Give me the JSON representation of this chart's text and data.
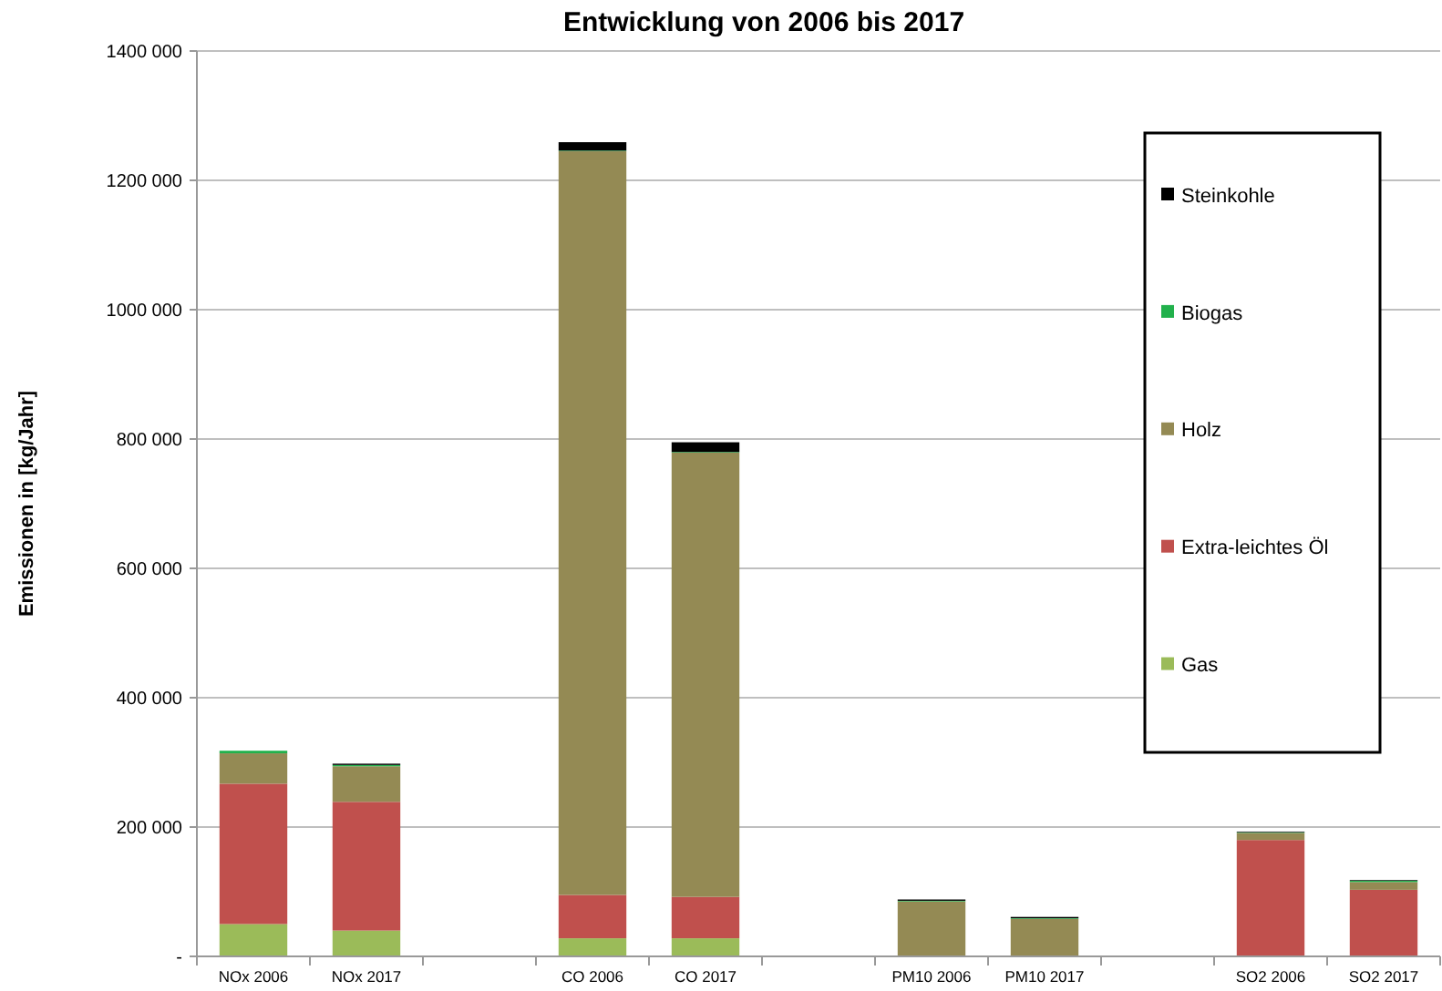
{
  "chart_data": {
    "type": "bar",
    "stacked": true,
    "title": "Entwicklung von 2006 bis 2017",
    "ylabel": "Emissionen in [kg/Jahr]",
    "categories": [
      "NOx 2006",
      "NOx 2017",
      null,
      "CO 2006",
      "CO 2017",
      null,
      "PM10 2006",
      "PM10 2017",
      null,
      "SO2 2006",
      "SO2 2017"
    ],
    "series": [
      {
        "name": "Gas",
        "color": "#9bbb59",
        "values": [
          50000,
          40000,
          null,
          28000,
          28000,
          null,
          null,
          null,
          null,
          null,
          null
        ]
      },
      {
        "name": "Extra-leichtes Öl",
        "color": "#c0504d",
        "values": [
          217000,
          199000,
          null,
          67000,
          64000,
          null,
          null,
          null,
          null,
          180000,
          103000
        ]
      },
      {
        "name": "Holz",
        "color": "#948a54",
        "values": [
          47000,
          55000,
          null,
          1150000,
          687000,
          null,
          85000,
          58000,
          null,
          11000,
          12000
        ]
      },
      {
        "name": "Biogas",
        "color": "#22b14c",
        "values": [
          4000,
          2000,
          null,
          1000,
          1000,
          null,
          1000,
          1000,
          null,
          1000,
          2000
        ]
      },
      {
        "name": "Steinkohle",
        "color": "#000000",
        "values": [
          0,
          2000,
          null,
          13000,
          15000,
          null,
          2000,
          2000,
          null,
          1000,
          1000
        ]
      }
    ],
    "ylim": [
      0,
      1400000
    ],
    "yticks": [
      {
        "value": 0,
        "label": "-"
      },
      {
        "value": 200000,
        "label": "200 000"
      },
      {
        "value": 400000,
        "label": "400 000"
      },
      {
        "value": 600000,
        "label": "600 000"
      },
      {
        "value": 800000,
        "label": "800 000"
      },
      {
        "value": 1000000,
        "label": "1000 000"
      },
      {
        "value": 1200000,
        "label": "1200 000"
      },
      {
        "value": 1400000,
        "label": "1400 000"
      }
    ],
    "grid": "y",
    "legend": "right"
  }
}
